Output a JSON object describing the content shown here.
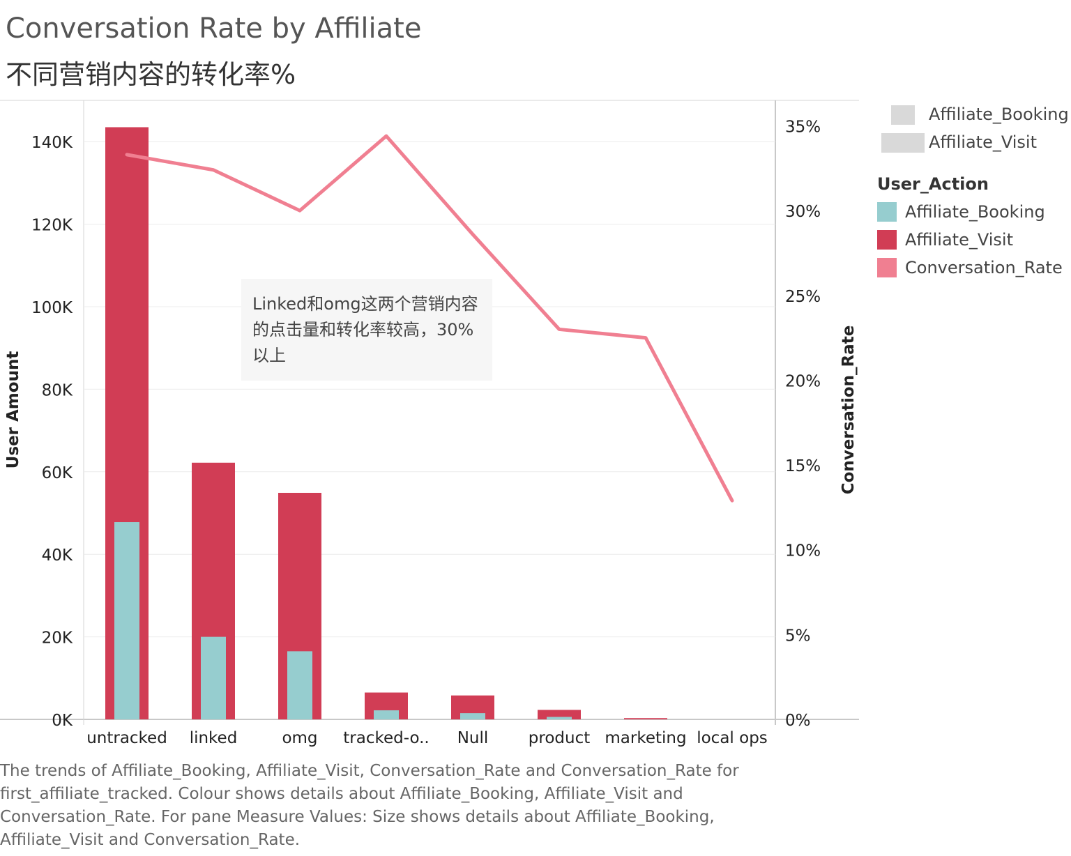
{
  "title": "Conversation Rate by Affiliate",
  "subtitle": "不同营销内容的转化率%",
  "annotation": "Linked和omg这两个营销内容的点击量和转化率较高，30%以上",
  "caption": "The trends of Affiliate_Booking, Affiliate_Visit, Conversation_Rate and Conversation_Rate for first_affiliate_tracked.  Colour shows details about Affiliate_Booking, Affiliate_Visit and Conversation_Rate.  For pane Measure Values:  Size shows details about Affiliate_Booking, Affiliate_Visit and Conversation_Rate.",
  "legend_top": {
    "items": [
      {
        "label": "Affiliate_Booking",
        "color": "#d9d9d9"
      },
      {
        "label": "Affiliate_Visit",
        "color": "#d9d9d9"
      }
    ]
  },
  "legend": {
    "title": "User_Action",
    "items": [
      {
        "label": "Affiliate_Booking",
        "color": "#96cdcf"
      },
      {
        "label": "Affiliate_Visit",
        "color": "#d13d55"
      },
      {
        "label": "Conversation_Rate",
        "color": "#f07f91"
      }
    ]
  },
  "chart_data": {
    "type": "bar",
    "categories": [
      "untracked",
      "linked",
      "omg",
      "tracked-o..",
      "Null",
      "product",
      "marketing",
      "local ops"
    ],
    "series": [
      {
        "name": "Affiliate_Visit",
        "axis": "left",
        "color": "#d13d55",
        "values": [
          143500,
          62200,
          54900,
          6500,
          5800,
          2300,
          300,
          0
        ]
      },
      {
        "name": "Affiliate_Booking",
        "axis": "left",
        "color": "#96cdcf",
        "values": [
          47800,
          20000,
          16500,
          2200,
          1500,
          600,
          0,
          0
        ]
      },
      {
        "name": "Conversation_Rate",
        "type": "line",
        "axis": "right",
        "color": "#f07f91",
        "values": [
          33.3,
          32.4,
          30.0,
          34.4,
          28.6,
          23.0,
          22.5,
          12.9
        ]
      }
    ],
    "yaxis_left": {
      "label": "User Amount",
      "range": [
        0,
        150000
      ],
      "ticks": [
        0,
        20000,
        40000,
        60000,
        80000,
        100000,
        120000,
        140000
      ],
      "tick_labels": [
        "0K",
        "20K",
        "40K",
        "60K",
        "80K",
        "100K",
        "120K",
        "140K"
      ]
    },
    "yaxis_right": {
      "label": "Conversation_Rate",
      "range": [
        0,
        36.5
      ],
      "ticks": [
        0,
        5,
        10,
        15,
        20,
        25,
        30,
        35
      ],
      "tick_labels": [
        "0%",
        "5%",
        "10%",
        "15%",
        "20%",
        "25%",
        "30%",
        "35%"
      ]
    },
    "grid": true
  }
}
